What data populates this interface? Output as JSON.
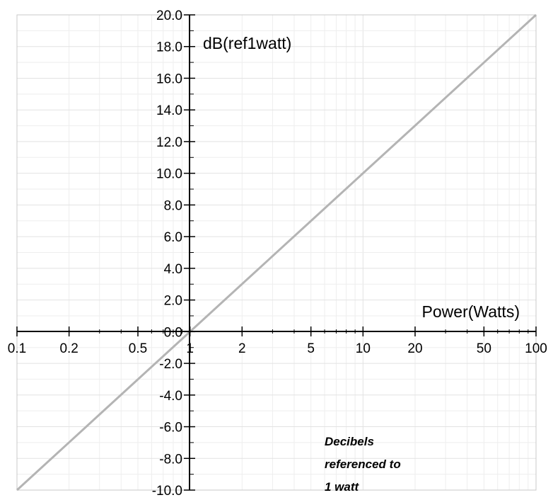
{
  "chart_data": {
    "type": "line",
    "x_scale": "log",
    "xlim": [
      0.1,
      100
    ],
    "ylim": [
      -10,
      20
    ],
    "grid": true,
    "xlabel": "Power(Watts)",
    "ylabel": "dB(ref1watt)",
    "x_tick_labels": [
      "0.1",
      "0.2",
      "0.5",
      "1",
      "2",
      "5",
      "10",
      "20",
      "50",
      "100"
    ],
    "x_ticks": [
      0.1,
      0.2,
      0.5,
      1,
      2,
      5,
      10,
      20,
      50,
      100
    ],
    "y_tick_labels": [
      "20.0",
      "18.0",
      "16.0",
      "14.0",
      "12.0",
      "10.0",
      "8.0",
      "6.0",
      "4.0",
      "2.0",
      "0.0",
      "-2.0",
      "-4.0",
      "-6.0",
      "-8.0",
      "-10.0"
    ],
    "y_ticks": [
      20,
      18,
      16,
      14,
      12,
      10,
      8,
      6,
      4,
      2,
      0,
      -2,
      -4,
      -6,
      -8,
      -10
    ],
    "series": [
      {
        "x": [
          0.1,
          0.2,
          0.5,
          1,
          2,
          5,
          10,
          20,
          50,
          100
        ],
        "y": [
          -10,
          -6.99,
          -3.01,
          0,
          3.01,
          6.99,
          10,
          13.01,
          16.99,
          20
        ],
        "color": "#b4b4b4"
      }
    ],
    "annotation_lines": [
      "Decibels",
      "referenced to",
      "1 watt"
    ]
  }
}
